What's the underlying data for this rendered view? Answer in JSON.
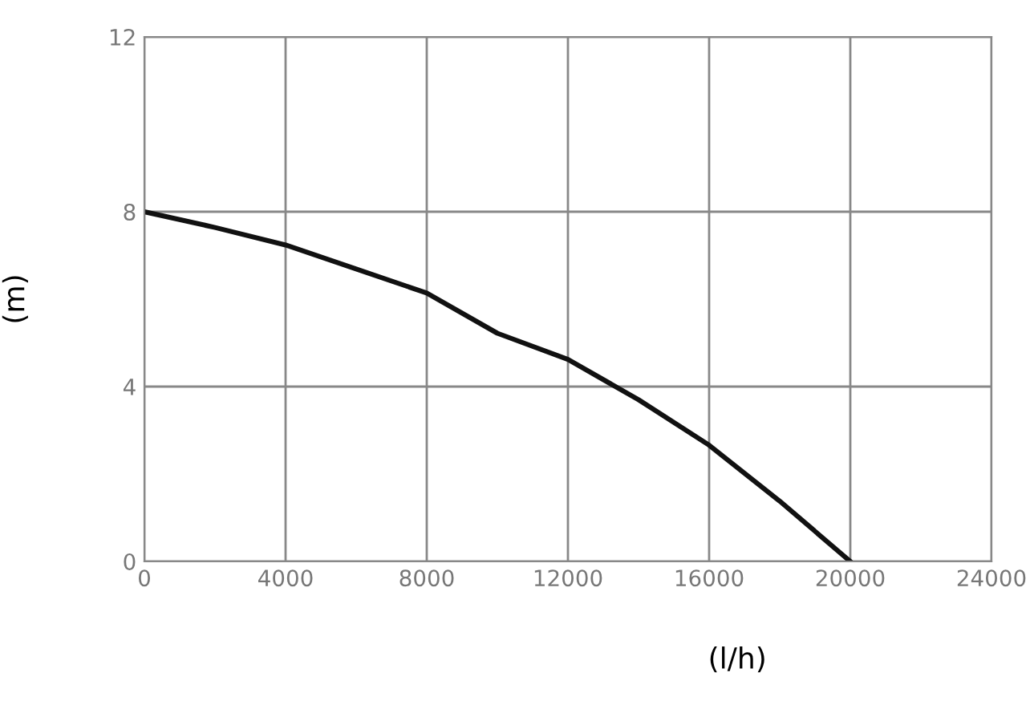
{
  "chart_data": {
    "type": "line",
    "xlabel": "(l/h)",
    "ylabel": "(m)",
    "x": [
      0,
      2000,
      4000,
      6000,
      8000,
      10000,
      12000,
      14000,
      16000,
      18000,
      20000
    ],
    "series": [
      {
        "color": "#111111",
        "values": [
          8.0,
          7.64,
          7.24,
          6.69,
          6.14,
          5.22,
          4.62,
          3.7,
          2.66,
          1.38,
          0.0
        ]
      }
    ],
    "xlim": [
      0,
      24000
    ],
    "ylim": [
      0,
      12
    ],
    "xticks": [
      0,
      4000,
      8000,
      12000,
      16000,
      20000,
      24000
    ],
    "yticks": [
      0,
      4,
      8,
      12
    ],
    "grid": true,
    "marker": "none",
    "line_style": "solid"
  }
}
